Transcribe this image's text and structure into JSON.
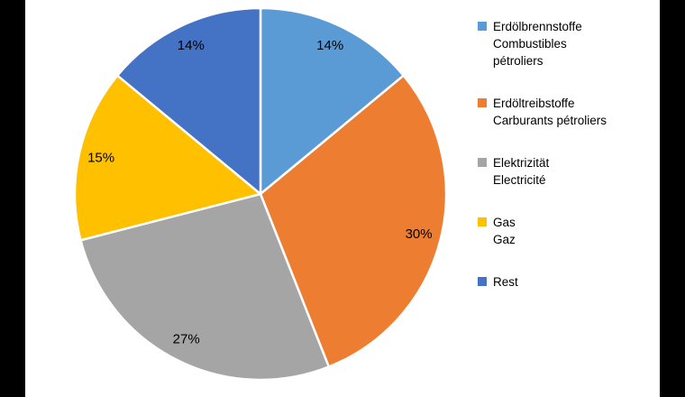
{
  "chart_data": {
    "type": "pie",
    "title": "",
    "direction": "clockwise",
    "start_angle_deg": 0,
    "legend_position": "right",
    "data_labels": "percent, inside",
    "background_color": "#ffffff",
    "frame_bar_color": "#000000",
    "slices": [
      {
        "value": 14,
        "percent_label": "14%",
        "color": "#5B9BD5",
        "legend_lines": [
          "Erdölbrennstoffe",
          "Combustibles",
          "pétroliers"
        ]
      },
      {
        "value": 30,
        "percent_label": "30%",
        "color": "#ED7D31",
        "legend_lines": [
          "Erdöltreibstoffe",
          "Carburants pétroliers"
        ]
      },
      {
        "value": 27,
        "percent_label": "27%",
        "color": "#A5A5A5",
        "legend_lines": [
          "Elektrizität",
          "Electricité"
        ]
      },
      {
        "value": 15,
        "percent_label": "15%",
        "color": "#FFC000",
        "legend_lines": [
          "Gas",
          "Gaz"
        ]
      },
      {
        "value": 14,
        "percent_label": "14%",
        "color": "#4472C4",
        "legend_lines": [
          "Rest"
        ]
      }
    ]
  }
}
